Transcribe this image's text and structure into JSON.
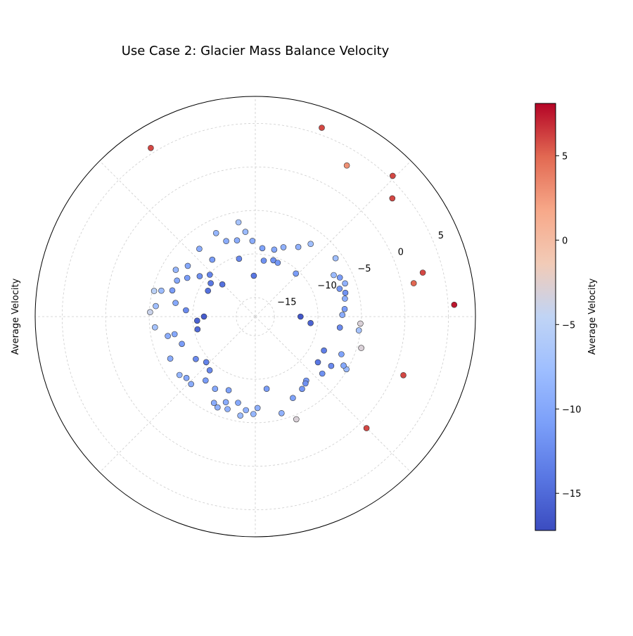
{
  "chart_data": {
    "type": "scatter",
    "subtype": "polar",
    "title": "Use Case 2: Glacier Mass Balance Velocity",
    "ylabel": "Average Velocity",
    "colorbar_label": "Average Velocity",
    "colormap": "coolwarm",
    "radial_range": [
      -17.2,
      8.1
    ],
    "radial_ticks": [
      -15,
      -10,
      -5,
      0,
      5
    ],
    "radial_tick_labels": [
      "−15",
      "−10",
      "−5",
      "0",
      "5"
    ],
    "radial_label_angle_deg": 22.5,
    "angular_gridlines_deg": [
      0,
      45,
      90,
      135,
      180,
      225,
      270,
      315
    ],
    "grid": true,
    "color_range": [
      -17.2,
      8.1
    ],
    "colorbar_ticks": [
      -15,
      -10,
      -5,
      0,
      5
    ],
    "colorbar_tick_labels": [
      "−15",
      "−10",
      "−5",
      "0",
      "5"
    ],
    "points": [
      {
        "theta": 70.6,
        "r": 5.8,
        "c": 6.0
      },
      {
        "theta": 121.8,
        "r": 5.6,
        "c": 6.0
      },
      {
        "theta": 58.8,
        "r": 3.1,
        "c": 3.0
      },
      {
        "theta": 45.7,
        "r": 5.4,
        "c": 6.0
      },
      {
        "theta": 40.8,
        "r": 3.6,
        "c": 6.0
      },
      {
        "theta": 14.7,
        "r": 2.7,
        "c": 6.0
      },
      {
        "theta": 11.9,
        "r": 1.4,
        "c": 5.0
      },
      {
        "theta": 3.4,
        "r": 5.7,
        "c": 7.5
      },
      {
        "theta": -21.6,
        "r": 1.1,
        "c": 6.0
      },
      {
        "theta": -45.1,
        "r": 0.9,
        "c": 6.0
      },
      {
        "theta": -3.8,
        "r": -5.1,
        "c": -3.0
      },
      {
        "theta": -16.5,
        "r": -4.5,
        "c": -3.0
      },
      {
        "theta": -68.2,
        "r": -4.5,
        "c": -3.0
      },
      {
        "theta": 177.6,
        "r": -5.1,
        "c": -4.0
      },
      {
        "theta": 165.8,
        "r": -5.2,
        "c": -5.0
      },
      {
        "theta": 0.0,
        "r": -12.0,
        "c": -16.5
      },
      {
        "theta": -6.7,
        "r": -10.8,
        "c": -15.5
      },
      {
        "theta": 27.9,
        "r": -7.0,
        "c": -8.0
      },
      {
        "theta": 36.0,
        "r": -5.8,
        "c": -7.5
      },
      {
        "theta": 24.8,
        "r": -6.5,
        "c": -11.0
      },
      {
        "theta": 20.3,
        "r": -6.2,
        "c": -9.0
      },
      {
        "theta": 18.3,
        "r": -7.0,
        "c": -11.5
      },
      {
        "theta": 14.8,
        "r": -6.5,
        "c": -12.0
      },
      {
        "theta": 11.3,
        "r": -6.7,
        "c": -9.5
      },
      {
        "theta": 1.1,
        "r": -7.2,
        "c": -9.5
      },
      {
        "theta": 4.8,
        "r": -6.9,
        "c": -11.0
      },
      {
        "theta": -7.6,
        "r": -5.2,
        "c": -7.0
      },
      {
        "theta": -7.4,
        "r": -7.4,
        "c": -12.5
      },
      {
        "theta": -30.0,
        "r": -5.1,
        "c": -8.0
      },
      {
        "theta": -23.6,
        "r": -6.4,
        "c": -10.5
      },
      {
        "theta": -29.0,
        "r": -5.6,
        "c": -10.0
      },
      {
        "theta": -33.0,
        "r": -6.8,
        "c": -12.5
      },
      {
        "theta": -40.4,
        "r": -7.1,
        "c": -12.0
      },
      {
        "theta": -26.3,
        "r": -8.4,
        "c": -13.5
      },
      {
        "theta": -36.1,
        "r": -8.3,
        "c": -14.0
      },
      {
        "theta": -51.5,
        "r": -7.8,
        "c": -11.5
      },
      {
        "theta": -53.1,
        "r": -7.6,
        "c": -12.0
      },
      {
        "theta": -57.1,
        "r": -7.3,
        "c": -11.5
      },
      {
        "theta": -65.2,
        "r": -6.9,
        "c": -10.5
      },
      {
        "theta": -74.8,
        "r": -5.7,
        "c": -9.0
      },
      {
        "theta": -81.1,
        "r": -8.8,
        "c": -11.0
      },
      {
        "theta": -88.6,
        "r": -6.7,
        "c": -9.0
      },
      {
        "theta": -91.1,
        "r": -6.0,
        "c": -8.5
      },
      {
        "theta": -95.7,
        "r": -6.4,
        "c": -9.0
      },
      {
        "theta": -101.3,
        "r": -7.1,
        "c": -10.0
      },
      {
        "theta": -98.6,
        "r": -5.7,
        "c": -8.0
      },
      {
        "theta": -106.7,
        "r": -6.1,
        "c": -9.0
      },
      {
        "theta": -109.0,
        "r": -6.8,
        "c": -9.5
      },
      {
        "theta": -112.6,
        "r": -5.9,
        "c": -9.0
      },
      {
        "theta": -115.6,
        "r": -6.2,
        "c": -9.5
      },
      {
        "theta": -109.9,
        "r": -8.2,
        "c": -10.5
      },
      {
        "theta": -119.1,
        "r": -7.7,
        "c": -10.0
      },
      {
        "theta": -127.9,
        "r": -7.9,
        "c": -11.0
      },
      {
        "theta": -133.6,
        "r": -6.5,
        "c": -9.5
      },
      {
        "theta": -138.3,
        "r": -6.6,
        "c": -10.0
      },
      {
        "theta": -142.4,
        "r": -6.2,
        "c": -8.5
      },
      {
        "theta": -153.7,
        "r": -6.3,
        "c": -9.5
      },
      {
        "theta": -137.1,
        "r": -9.5,
        "c": -13.0
      },
      {
        "theta": -130.4,
        "r": -9.1,
        "c": -12.5
      },
      {
        "theta": -144.5,
        "r": -8.8,
        "c": -12.5
      },
      {
        "theta": -159.6,
        "r": -8.2,
        "c": -11.0
      },
      {
        "theta": -167.5,
        "r": -6.9,
        "c": -9.5
      },
      {
        "theta": -167.6,
        "r": -10.4,
        "c": -15.0
      },
      {
        "theta": -167.7,
        "r": -7.7,
        "c": -10.0
      },
      {
        "theta": -173.9,
        "r": -5.6,
        "c": -7.0
      },
      {
        "theta": 174.0,
        "r": -5.7,
        "c": -7.5
      },
      {
        "theta": 170.3,
        "r": -7.9,
        "c": -10.0
      },
      {
        "theta": 164.6,
        "r": -6.0,
        "c": -8.0
      },
      {
        "theta": 174.8,
        "r": -9.2,
        "c": -12.5
      },
      {
        "theta": 179.9,
        "r": -11.3,
        "c": -16.0
      },
      {
        "theta": -176.0,
        "r": -10.5,
        "c": -15.5
      },
      {
        "theta": 162.5,
        "r": -7.2,
        "c": -11.0
      },
      {
        "theta": 150.4,
        "r": -8.2,
        "c": -11.0
      },
      {
        "theta": 155.3,
        "r": -7.3,
        "c": -10.0
      },
      {
        "theta": 143.1,
        "r": -7.5,
        "c": -10.0
      },
      {
        "theta": 149.6,
        "r": -6.6,
        "c": -8.5
      },
      {
        "theta": 144.0,
        "r": -9.3,
        "c": -12.0
      },
      {
        "theta": 127.1,
        "r": -9.0,
        "c": -11.0
      },
      {
        "theta": 137.4,
        "r": -10.1,
        "c": -13.0
      },
      {
        "theta": 129.6,
        "r": -7.1,
        "c": -9.5
      },
      {
        "theta": 151.4,
        "r": -11.0,
        "c": -14.5
      },
      {
        "theta": 143.2,
        "r": -10.8,
        "c": -14.0
      },
      {
        "theta": 135.7,
        "r": -11.9,
        "c": -14.5
      },
      {
        "theta": 115.2,
        "r": -6.6,
        "c": -8.5
      },
      {
        "theta": 111.1,
        "r": -7.9,
        "c": -9.5
      },
      {
        "theta": 96.7,
        "r": -7.4,
        "c": -8.0
      },
      {
        "theta": 103.5,
        "r": -8.2,
        "c": -9.5
      },
      {
        "theta": 92.2,
        "r": -8.5,
        "c": -9.5
      },
      {
        "theta": 100.1,
        "r": -6.2,
        "c": -7.0
      },
      {
        "theta": 105.7,
        "r": -10.3,
        "c": -12.5
      },
      {
        "theta": 92.1,
        "r": -12.5,
        "c": -14.0
      },
      {
        "theta": 84.1,
        "r": -9.3,
        "c": -10.5
      },
      {
        "theta": 81.4,
        "r": -10.7,
        "c": -12.0
      },
      {
        "theta": 72.3,
        "r": -10.4,
        "c": -12.0
      },
      {
        "theta": 74.2,
        "r": -9.2,
        "c": -10.0
      },
      {
        "theta": 67.9,
        "r": -8.6,
        "c": -9.0
      },
      {
        "theta": 67.4,
        "r": -10.5,
        "c": -11.5
      },
      {
        "theta": 46.7,
        "r": -10.4,
        "c": -11.0
      },
      {
        "theta": 58.3,
        "r": -7.8,
        "c": -9.0
      },
      {
        "theta": 52.7,
        "r": -6.7,
        "c": -7.5
      }
    ]
  }
}
